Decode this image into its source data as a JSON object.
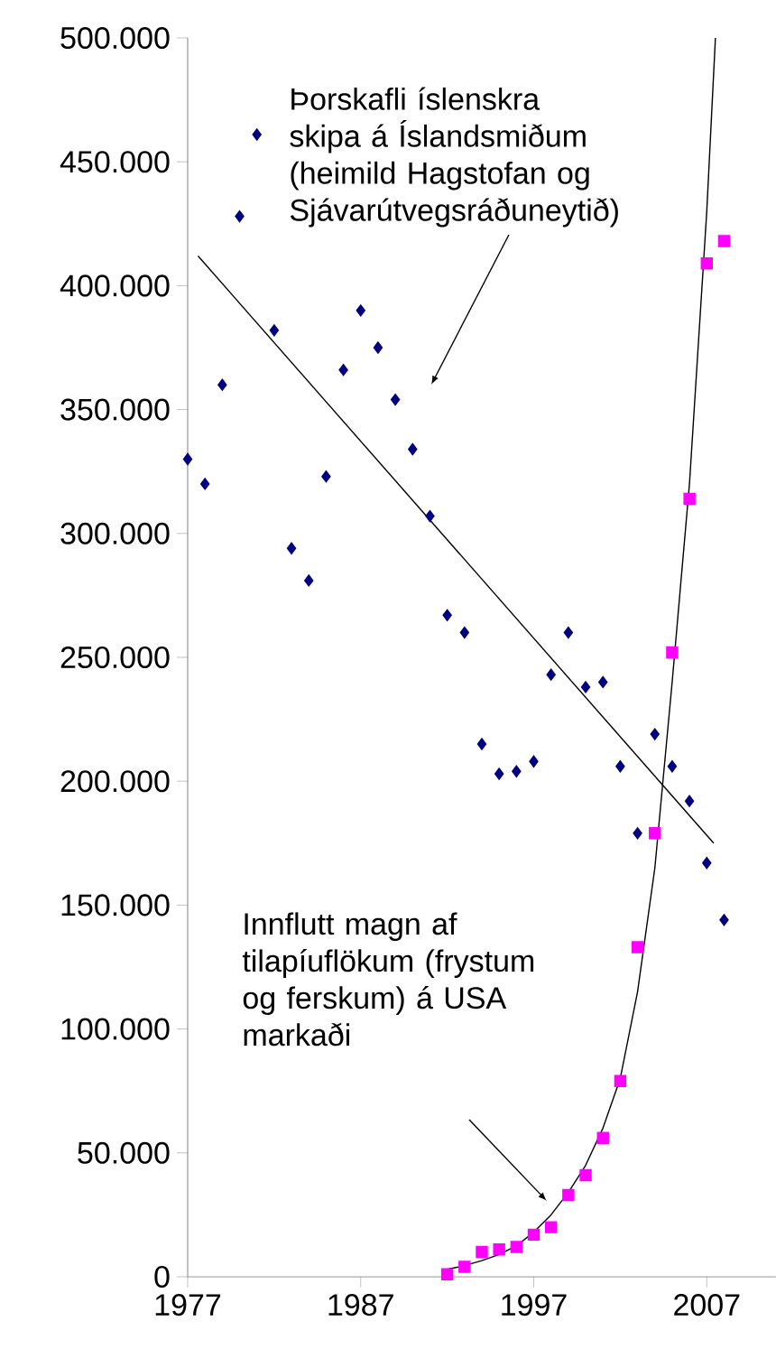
{
  "chart_data": {
    "type": "scatter",
    "xlim": [
      1977,
      2011
    ],
    "xticks": [
      1977,
      1987,
      1997,
      2007
    ],
    "ylim": [
      0,
      500000
    ],
    "yticks": [
      {
        "value": 0,
        "label": "0"
      },
      {
        "value": 50000,
        "label": "50.000"
      },
      {
        "value": 100000,
        "label": "100.000"
      },
      {
        "value": 150000,
        "label": "150.000"
      },
      {
        "value": 200000,
        "label": "200.000"
      },
      {
        "value": 250000,
        "label": "250.000"
      },
      {
        "value": 300000,
        "label": "300.000"
      },
      {
        "value": 350000,
        "label": "350.000"
      },
      {
        "value": 400000,
        "label": "400.000"
      },
      {
        "value": 450000,
        "label": "450.000"
      },
      {
        "value": 500000,
        "label": "500.000"
      }
    ],
    "grid": false,
    "series": [
      {
        "marker": "diamond",
        "color": "#000080",
        "x": [
          1977,
          1978,
          1979,
          1980,
          1981,
          1982,
          1983,
          1984,
          1985,
          1986,
          1987,
          1988,
          1989,
          1990,
          1991,
          1992,
          1993,
          1994,
          1995,
          1996,
          1997,
          1998,
          1999,
          2000,
          2001,
          2002,
          2003,
          2004,
          2005,
          2006,
          2007,
          2008
        ],
        "values": [
          330000,
          320000,
          360000,
          428000,
          461000,
          382000,
          294000,
          281000,
          323000,
          366000,
          390000,
          375000,
          354000,
          334000,
          307000,
          267000,
          260000,
          215000,
          203000,
          204000,
          208000,
          243000,
          260000,
          238000,
          240000,
          206000,
          179000,
          219000,
          206000,
          192000,
          167000,
          144000
        ]
      },
      {
        "marker": "square",
        "color": "#ff00ff",
        "x": [
          1992,
          1993,
          1994,
          1995,
          1996,
          1997,
          1998,
          1999,
          2000,
          2001,
          2002,
          2003,
          2004,
          2005,
          2006,
          2007,
          2008
        ],
        "values": [
          1000,
          4000,
          10000,
          11000,
          12000,
          17000,
          20000,
          33000,
          41000,
          56000,
          79000,
          133000,
          179000,
          252000,
          314000,
          409000,
          418000
        ]
      },
      {
        "type": "line",
        "marker": "none",
        "color": "#000000",
        "x": [
          1977.6,
          2007.4
        ],
        "values": [
          412000,
          175000
        ]
      },
      {
        "type": "line",
        "marker": "none",
        "color": "#000000",
        "x": [
          1992,
          1993,
          1994,
          1995,
          1996,
          1997,
          1998,
          1999,
          2000,
          2001,
          2002,
          2003,
          2004,
          2005,
          2006,
          2007,
          2007.5
        ],
        "values": [
          3000,
          4500,
          6500,
          9000,
          12500,
          18000,
          25000,
          34000,
          45000,
          60000,
          80000,
          115000,
          165000,
          240000,
          320000,
          430000,
          500000
        ]
      }
    ],
    "annotations": [
      "Þorskafli íslenskra skipa á Íslandsmiðum (heimild Hagstofan og Sjávarútvegsráðuneytið)",
      "Innflutt magn af tilapíuflökum (frystum og ferskum) á USA markaði"
    ]
  }
}
